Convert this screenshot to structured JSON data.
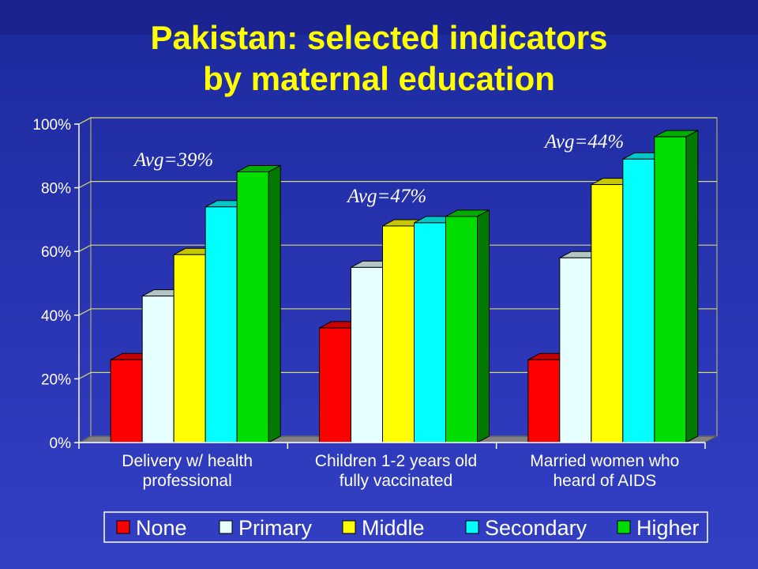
{
  "slide": {
    "title_line1": "Pakistan: selected indicators",
    "title_line2": "by maternal education"
  },
  "chart_data": {
    "type": "bar",
    "title": "Pakistan: selected indicators by maternal education",
    "categories": [
      [
        "Delivery w/ health",
        "professional"
      ],
      [
        "Children 1-2 years old",
        "fully vaccinated"
      ],
      [
        "Married women who",
        "heard of AIDS"
      ]
    ],
    "series": [
      {
        "name": "None",
        "color": "#ff0000",
        "values": [
          26,
          36,
          26
        ]
      },
      {
        "name": "Primary",
        "color": "#e6ffff",
        "values": [
          46,
          55,
          58
        ]
      },
      {
        "name": "Middle",
        "color": "#ffff00",
        "values": [
          59,
          68,
          81
        ]
      },
      {
        "name": "Secondary",
        "color": "#00ffff",
        "values": [
          74,
          69,
          89
        ]
      },
      {
        "name": "Higher",
        "color": "#00dd00",
        "values": [
          85,
          71,
          96
        ]
      }
    ],
    "annotations": [
      "Avg=39%",
      "Avg=47%",
      "Avg=44%"
    ],
    "yticks": [
      "0%",
      "20%",
      "40%",
      "60%",
      "80%",
      "100%"
    ],
    "ylim": [
      0,
      100
    ],
    "grid": true,
    "legend_position": "bottom"
  }
}
